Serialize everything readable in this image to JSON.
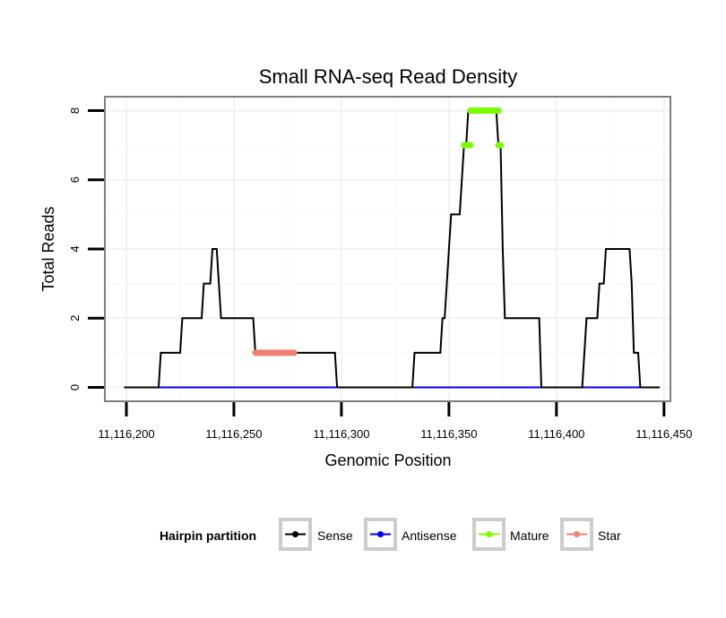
{
  "chart_data": {
    "type": "line",
    "title": "Small RNA-seq Read Density",
    "xlabel": "Genomic Position",
    "ylabel": "Total Reads",
    "xlim": [
      11116190,
      11116453
    ],
    "ylim": [
      -0.4,
      8.4
    ],
    "x_ticks": [
      11116200,
      11116250,
      11116300,
      11116350,
      11116400,
      11116450
    ],
    "x_tick_labels": [
      "11,116,200",
      "11,116,250",
      "11,116,300",
      "11,116,350",
      "11,116,400",
      "11,116,450"
    ],
    "y_ticks": [
      0,
      2,
      4,
      6,
      8
    ],
    "y_tick_labels": [
      "0",
      "2",
      "4",
      "6",
      "8"
    ],
    "grid": true,
    "legend": {
      "title": "Hairpin partition",
      "position": "bottom",
      "entries": [
        "Sense",
        "Antisense",
        "Mature",
        "Star"
      ]
    },
    "series": [
      {
        "name": "Sense",
        "color": "#000000",
        "points": [
          [
            11116199,
            0
          ],
          [
            11116215,
            0
          ],
          [
            11116216,
            1
          ],
          [
            11116225,
            1
          ],
          [
            11116226,
            2
          ],
          [
            11116235,
            2
          ],
          [
            11116236,
            3
          ],
          [
            11116239,
            3
          ],
          [
            11116240,
            4
          ],
          [
            11116242,
            4
          ],
          [
            11116244,
            2
          ],
          [
            11116259,
            2
          ],
          [
            11116260,
            1
          ],
          [
            11116297,
            1
          ],
          [
            11116298,
            0
          ],
          [
            11116333,
            0
          ],
          [
            11116334,
            1
          ],
          [
            11116346,
            1
          ],
          [
            11116347,
            2
          ],
          [
            11116348,
            2
          ],
          [
            11116350,
            4
          ],
          [
            11116351,
            5
          ],
          [
            11116355,
            5
          ],
          [
            11116357,
            7
          ],
          [
            11116358,
            7
          ],
          [
            11116359,
            8
          ],
          [
            11116372,
            8
          ],
          [
            11116373,
            7
          ],
          [
            11116374,
            7
          ],
          [
            11116375,
            4
          ],
          [
            11116376,
            2
          ],
          [
            11116392,
            2
          ],
          [
            11116393,
            0
          ],
          [
            11116412,
            0
          ],
          [
            11116414,
            2
          ],
          [
            11116419,
            2
          ],
          [
            11116420,
            3
          ],
          [
            11116422,
            3
          ],
          [
            11116423,
            4
          ],
          [
            11116434,
            4
          ],
          [
            11116435,
            3
          ],
          [
            11116436,
            1
          ],
          [
            11116438,
            1
          ],
          [
            11116439,
            0
          ],
          [
            11116448,
            0
          ]
        ]
      },
      {
        "name": "Antisense",
        "color": "#0000ff",
        "points": [
          [
            11116199,
            0
          ],
          [
            11116447,
            0
          ]
        ]
      },
      {
        "name": "Mature",
        "color": "#7cfc00",
        "segments": [
          [
            [
              11116357,
              7
            ],
            [
              11116360,
              7
            ]
          ],
          [
            [
              11116360,
              8
            ],
            [
              11116373,
              8
            ]
          ],
          [
            [
              11116373,
              7
            ],
            [
              11116374,
              7
            ]
          ]
        ]
      },
      {
        "name": "Star",
        "color": "#f08070",
        "segments": [
          [
            [
              11116260,
              1
            ],
            [
              11116278,
              1
            ]
          ]
        ]
      }
    ]
  }
}
